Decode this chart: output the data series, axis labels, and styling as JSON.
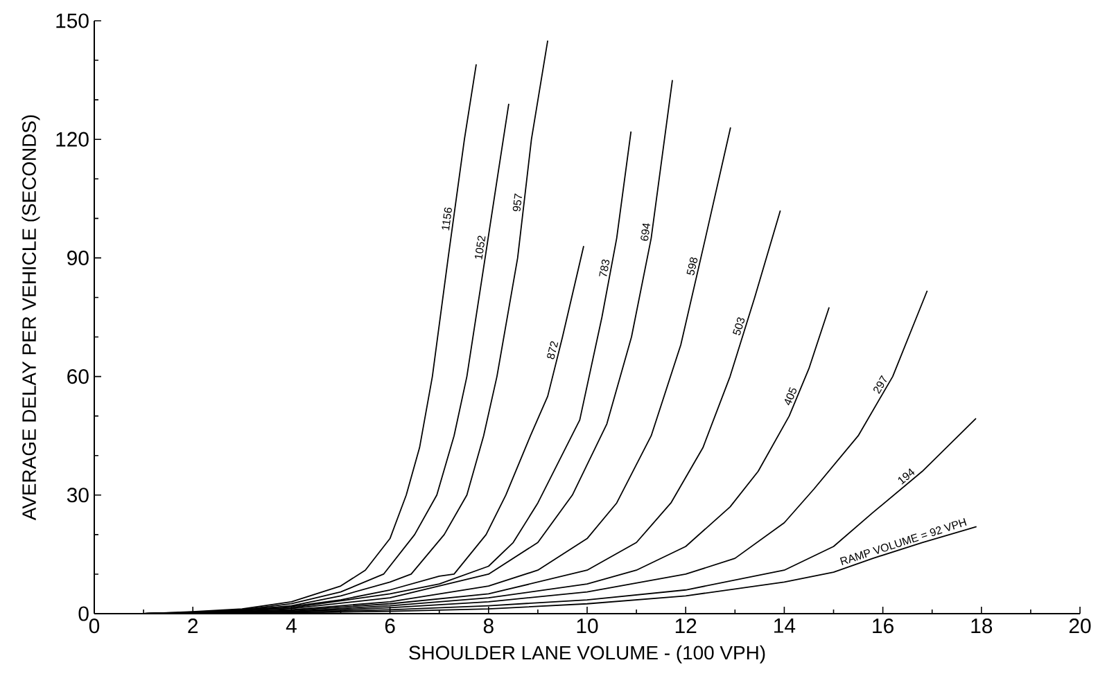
{
  "chart_data": {
    "type": "line",
    "xlabel": "SHOULDER LANE VOLUME - (100 VPH)",
    "ylabel": "AVERAGE DELAY PER VEHICLE (SECONDS)",
    "xlim": [
      0,
      20
    ],
    "ylim": [
      0,
      150
    ],
    "xticks": [
      0,
      2,
      4,
      6,
      8,
      10,
      12,
      14,
      16,
      18,
      20
    ],
    "yticks": [
      0,
      30,
      60,
      90,
      120,
      150
    ],
    "grid": false,
    "marker": "none",
    "line_style": "solid",
    "series": [
      {
        "name": "1156",
        "color": "#000000",
        "x": [
          1,
          2,
          3,
          4,
          5,
          5.5,
          6,
          6.33,
          6.6,
          6.86,
          7.18,
          7.51,
          7.75
        ],
        "values": [
          0,
          0.5,
          1.2,
          3,
          7,
          11,
          19,
          30,
          42,
          60,
          90,
          120,
          139
        ]
      },
      {
        "name": "1052",
        "color": "#000000",
        "x": [
          1,
          2,
          3,
          4,
          5,
          5.87,
          6.5,
          6.95,
          7.3,
          7.56,
          7.93,
          8.2,
          8.41
        ],
        "values": [
          0,
          0.4,
          1,
          2.5,
          5.5,
          10,
          20,
          30,
          45,
          60,
          90,
          112,
          129
        ]
      },
      {
        "name": "957",
        "color": "#000000",
        "x": [
          1,
          2,
          3,
          4,
          5,
          6,
          6.43,
          7.1,
          7.56,
          7.9,
          8.17,
          8.59,
          8.87,
          9.2
        ],
        "values": [
          0,
          0.3,
          0.9,
          2,
          4.5,
          8,
          10,
          20,
          30,
          45,
          60,
          90,
          120,
          145
        ]
      },
      {
        "name": "872",
        "color": "#000000",
        "x": [
          1,
          2,
          4,
          5,
          6,
          7,
          7.3,
          7.95,
          8.35,
          8.85,
          9.2,
          9.5,
          9.93
        ],
        "values": [
          0,
          0.3,
          1.8,
          3.5,
          6,
          9.5,
          10,
          20,
          30,
          45,
          55,
          70,
          93
        ]
      },
      {
        "name": "783",
        "color": "#000000",
        "x": [
          1,
          2,
          4,
          6,
          7,
          8,
          8.5,
          9,
          9.85,
          10.3,
          10.6,
          10.89
        ],
        "values": [
          0,
          0.3,
          1.5,
          5,
          7.5,
          12,
          18,
          28,
          49,
          75,
          95,
          122
        ]
      },
      {
        "name": "694",
        "color": "#000000",
        "x": [
          1,
          2,
          4,
          6,
          8,
          9,
          9.7,
          10.4,
          10.9,
          11.3,
          11.73
        ],
        "values": [
          0,
          0.2,
          1.3,
          4,
          10,
          18,
          30,
          48,
          70,
          95,
          135
        ]
      },
      {
        "name": "598",
        "color": "#000000",
        "x": [
          1,
          2,
          4,
          6,
          8,
          9,
          10,
          10.6,
          11.3,
          11.9,
          12.4,
          12.91
        ],
        "values": [
          0,
          0.2,
          1,
          3,
          7,
          11,
          19,
          28,
          45,
          68,
          95,
          123
        ]
      },
      {
        "name": "503",
        "color": "#000000",
        "x": [
          1,
          2,
          4,
          6,
          8,
          10,
          11,
          11.7,
          12.35,
          12.9,
          13.4,
          13.92
        ],
        "values": [
          0,
          0.2,
          0.8,
          2.5,
          5,
          11,
          18,
          28,
          42,
          60,
          80,
          102
        ]
      },
      {
        "name": "405",
        "color": "#000000",
        "x": [
          1,
          2,
          4,
          6,
          8,
          10,
          11,
          12,
          12.9,
          13.47,
          14.1,
          14.5,
          14.91
        ],
        "values": [
          0,
          0.1,
          0.6,
          2,
          4,
          7.5,
          11,
          17,
          27,
          36,
          50,
          62,
          77.5
        ]
      },
      {
        "name": "297",
        "color": "#000000",
        "x": [
          1,
          4,
          6,
          8,
          10,
          12,
          13,
          14,
          14.6,
          15.5,
          16.2,
          16.9
        ],
        "values": [
          0,
          0.5,
          1.5,
          3,
          5.5,
          10,
          14,
          23,
          31.5,
          45,
          60,
          81.7
        ]
      },
      {
        "name": "194",
        "color": "#000000",
        "x": [
          1,
          4,
          6,
          8,
          10,
          12,
          14,
          15,
          15.8,
          16.8,
          17.89
        ],
        "values": [
          0,
          0.4,
          1,
          2,
          3.5,
          6,
          11,
          17,
          25.6,
          36,
          49.4
        ]
      },
      {
        "name": "RAMP VOLUME = 92 VPH",
        "color": "#000000",
        "x": [
          1,
          4,
          6,
          8,
          10,
          12,
          14,
          15,
          15.8,
          16.8,
          17.9
        ],
        "values": [
          0,
          0.2,
          0.6,
          1.2,
          2.5,
          4.5,
          8,
          10.5,
          14,
          18,
          22
        ]
      }
    ]
  }
}
